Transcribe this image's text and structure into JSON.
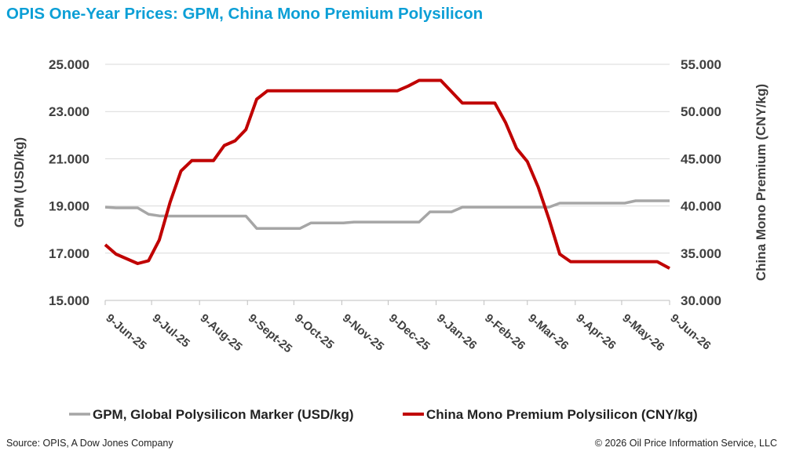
{
  "title": "OPIS One-Year Prices: GPM, China Mono Premium Polysilicon",
  "source": "Source: OPIS, A Dow Jones Company",
  "copyright": "© 2026 Oil Price Information Service, LLC",
  "chart_data": {
    "type": "line",
    "x": [
      "9-Jun-25",
      "23-Jun-25",
      "7-Jul-25",
      "21-Jul-25",
      "4-Aug-25",
      "18-Aug-25",
      "1-Sept-25",
      "15-Sept-25",
      "29-Sept-25",
      "13-Oct-25",
      "27-Oct-25",
      "10-Nov-25",
      "24-Nov-25",
      "8-Dec-25",
      "22-Dec-25",
      "5-Jan-26",
      "19-Jan-26",
      "2-Feb-26",
      "16-Feb-26",
      "2-Mar-26",
      "16-Mar-26",
      "30-Mar-26",
      "13-Apr-26",
      "27-Apr-26",
      "11-May-26",
      "25-May-26",
      "9-Jun-26"
    ],
    "x_tick_labels": [
      "9-Jun-25",
      "9-Jul-25",
      "9-Aug-25",
      "9-Sept-25",
      "9-Oct-25",
      "9-Nov-25",
      "9-Dec-25",
      "9-Jan-26",
      "9-Feb-26",
      "9-Mar-26",
      "9-Apr-26",
      "9-May-26",
      "9-Jun-26"
    ],
    "x_range": [
      "2025-06-09",
      "2026-06-09"
    ],
    "y_left": {
      "label": "GPM (USD/kg)",
      "range": [
        15,
        25
      ],
      "ticks": [
        "15.000",
        "17.000",
        "19.000",
        "21.000",
        "23.000",
        "25.000"
      ]
    },
    "y_right": {
      "label": "China Mono Premium (CNY/kg)",
      "range": [
        30,
        55
      ],
      "ticks": [
        "30.000",
        "35.000",
        "40.000",
        "45.000",
        "50.000",
        "55.000"
      ]
    },
    "series": [
      {
        "name": "GPM, Global Polysilicon Marker (USD/kg)",
        "axis": "left",
        "color": "#a6a6a6",
        "points": [
          [
            "2025-06-09",
            18.95
          ],
          [
            "2025-06-16",
            18.92
          ],
          [
            "2025-06-23",
            18.92
          ],
          [
            "2025-06-30",
            18.92
          ],
          [
            "2025-07-07",
            18.65
          ],
          [
            "2025-07-14",
            18.58
          ],
          [
            "2025-07-21",
            18.57
          ],
          [
            "2025-07-28",
            18.57
          ],
          [
            "2025-08-04",
            18.57
          ],
          [
            "2025-08-11",
            18.57
          ],
          [
            "2025-08-18",
            18.57
          ],
          [
            "2025-08-25",
            18.57
          ],
          [
            "2025-09-01",
            18.57
          ],
          [
            "2025-09-08",
            18.57
          ],
          [
            "2025-09-15",
            18.05
          ],
          [
            "2025-09-22",
            18.05
          ],
          [
            "2025-09-29",
            18.05
          ],
          [
            "2025-10-06",
            18.05
          ],
          [
            "2025-10-13",
            18.05
          ],
          [
            "2025-10-20",
            18.28
          ],
          [
            "2025-10-27",
            18.28
          ],
          [
            "2025-11-03",
            18.28
          ],
          [
            "2025-11-10",
            18.28
          ],
          [
            "2025-11-17",
            18.32
          ],
          [
            "2025-11-24",
            18.32
          ],
          [
            "2025-12-01",
            18.32
          ],
          [
            "2025-12-08",
            18.32
          ],
          [
            "2025-12-15",
            18.32
          ],
          [
            "2025-12-22",
            18.32
          ],
          [
            "2025-12-29",
            18.32
          ],
          [
            "2026-01-05",
            18.75
          ],
          [
            "2026-01-12",
            18.75
          ],
          [
            "2026-01-19",
            18.75
          ],
          [
            "2026-01-26",
            18.95
          ],
          [
            "2026-02-02",
            18.95
          ],
          [
            "2026-02-09",
            18.95
          ],
          [
            "2026-02-16",
            18.95
          ],
          [
            "2026-02-23",
            18.95
          ],
          [
            "2026-03-02",
            18.95
          ],
          [
            "2026-03-09",
            18.95
          ],
          [
            "2026-03-16",
            18.95
          ],
          [
            "2026-03-23",
            18.95
          ],
          [
            "2026-03-30",
            19.12
          ],
          [
            "2026-04-06",
            19.12
          ],
          [
            "2026-04-13",
            19.12
          ],
          [
            "2026-04-20",
            19.12
          ],
          [
            "2026-04-27",
            19.12
          ],
          [
            "2026-05-04",
            19.12
          ],
          [
            "2026-05-11",
            19.12
          ],
          [
            "2026-05-18",
            19.22
          ],
          [
            "2026-05-25",
            19.22
          ],
          [
            "2026-06-01",
            19.22
          ],
          [
            "2026-06-09",
            19.22
          ]
        ]
      },
      {
        "name": "China Mono Premium Polysilicon (CNY/kg)",
        "axis": "right",
        "color": "#c00000",
        "points": [
          [
            "2025-06-09",
            35.9
          ],
          [
            "2025-06-16",
            34.9
          ],
          [
            "2025-06-23",
            34.4
          ],
          [
            "2025-06-30",
            33.9
          ],
          [
            "2025-07-07",
            34.2
          ],
          [
            "2025-07-14",
            36.4
          ],
          [
            "2025-07-21",
            40.4
          ],
          [
            "2025-07-28",
            43.7
          ],
          [
            "2025-08-04",
            44.8
          ],
          [
            "2025-08-11",
            44.8
          ],
          [
            "2025-08-18",
            44.8
          ],
          [
            "2025-08-25",
            46.4
          ],
          [
            "2025-09-01",
            46.9
          ],
          [
            "2025-09-08",
            48.1
          ],
          [
            "2025-09-15",
            51.3
          ],
          [
            "2025-09-22",
            52.2
          ],
          [
            "2025-09-29",
            52.2
          ],
          [
            "2025-10-06",
            52.2
          ],
          [
            "2025-10-13",
            52.2
          ],
          [
            "2025-10-20",
            52.2
          ],
          [
            "2025-10-27",
            52.2
          ],
          [
            "2025-11-03",
            52.2
          ],
          [
            "2025-11-10",
            52.2
          ],
          [
            "2025-11-17",
            52.2
          ],
          [
            "2025-11-24",
            52.2
          ],
          [
            "2025-12-01",
            52.2
          ],
          [
            "2025-12-08",
            52.2
          ],
          [
            "2025-12-15",
            52.2
          ],
          [
            "2025-12-22",
            52.7
          ],
          [
            "2025-12-29",
            53.3
          ],
          [
            "2026-01-05",
            53.3
          ],
          [
            "2026-01-12",
            53.3
          ],
          [
            "2026-01-19",
            52.1
          ],
          [
            "2026-01-26",
            50.9
          ],
          [
            "2026-02-02",
            50.9
          ],
          [
            "2026-02-09",
            50.9
          ],
          [
            "2026-02-16",
            50.9
          ],
          [
            "2026-02-23",
            48.8
          ],
          [
            "2026-03-02",
            46.1
          ],
          [
            "2026-03-09",
            44.7
          ],
          [
            "2026-03-16",
            42.0
          ],
          [
            "2026-03-23",
            38.6
          ],
          [
            "2026-03-30",
            34.9
          ],
          [
            "2026-04-06",
            34.1
          ],
          [
            "2026-04-13",
            34.1
          ],
          [
            "2026-04-20",
            34.1
          ],
          [
            "2026-04-27",
            34.1
          ],
          [
            "2026-05-04",
            34.1
          ],
          [
            "2026-05-11",
            34.1
          ],
          [
            "2026-05-18",
            34.1
          ],
          [
            "2026-05-25",
            34.1
          ],
          [
            "2026-06-01",
            34.1
          ],
          [
            "2026-06-09",
            33.4
          ]
        ]
      }
    ],
    "grid": true,
    "legend_position": "bottom"
  }
}
